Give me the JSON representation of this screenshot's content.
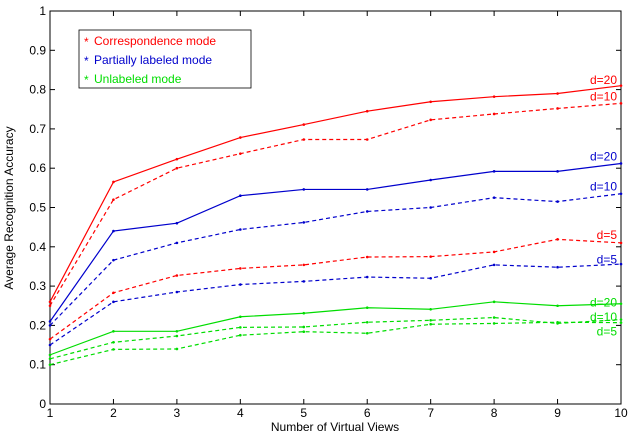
{
  "chart_data": {
    "type": "line",
    "xlabel": "Number of Virtual Views",
    "ylabel": "Average Recognition Accuracy",
    "xlim": [
      1,
      10
    ],
    "ylim": [
      0,
      1
    ],
    "x_ticks": [
      "1",
      "2",
      "3",
      "4",
      "5",
      "6",
      "7",
      "8",
      "9",
      "10"
    ],
    "y_ticks": [
      "0",
      "0.1",
      "0.2",
      "0.3",
      "0.4",
      "0.5",
      "0.6",
      "0.7",
      "0.8",
      "0.9",
      "1"
    ],
    "x": [
      1,
      2,
      3,
      4,
      5,
      6,
      7,
      8,
      9,
      10
    ],
    "grid": false,
    "legend": {
      "placement": "top-left",
      "entries": [
        {
          "label": "Correspondence mode",
          "color": "#ff0000"
        },
        {
          "label": "Partially labeled mode",
          "color": "#0000cc"
        },
        {
          "label": "Unlabeled mode",
          "color": "#00dd00"
        }
      ]
    },
    "series": [
      {
        "name": "d=20",
        "color": "#ff0000",
        "dash": "solid",
        "values": [
          0.26,
          0.565,
          0.623,
          0.678,
          0.711,
          0.745,
          0.769,
          0.782,
          0.79,
          0.81
        ]
      },
      {
        "name": "d=10",
        "color": "#ff0000",
        "dash": "dashed",
        "values": [
          0.25,
          0.52,
          0.6,
          0.637,
          0.673,
          0.673,
          0.723,
          0.738,
          0.752,
          0.765
        ]
      },
      {
        "name": "d=20",
        "color": "#0000cc",
        "dash": "solid",
        "values": [
          0.21,
          0.44,
          0.46,
          0.53,
          0.546,
          0.546,
          0.57,
          0.592,
          0.592,
          0.612
        ]
      },
      {
        "name": "d=10",
        "color": "#0000cc",
        "dash": "dashed",
        "values": [
          0.2,
          0.366,
          0.41,
          0.444,
          0.462,
          0.49,
          0.5,
          0.525,
          0.515,
          0.535
        ]
      },
      {
        "name": "d=5",
        "color": "#ff0000",
        "dash": "dashed",
        "values": [
          0.165,
          0.283,
          0.327,
          0.345,
          0.354,
          0.374,
          0.375,
          0.387,
          0.419,
          0.41
        ]
      },
      {
        "name": "d=5",
        "color": "#0000cc",
        "dash": "dashed",
        "values": [
          0.15,
          0.26,
          0.285,
          0.304,
          0.312,
          0.323,
          0.32,
          0.354,
          0.348,
          0.356
        ]
      },
      {
        "name": "d=20",
        "color": "#00dd00",
        "dash": "solid",
        "values": [
          0.125,
          0.185,
          0.185,
          0.222,
          0.231,
          0.245,
          0.241,
          0.26,
          0.25,
          0.255
        ]
      },
      {
        "name": "d=10",
        "color": "#00dd00",
        "dash": "dashed",
        "values": [
          0.115,
          0.157,
          0.173,
          0.195,
          0.196,
          0.208,
          0.213,
          0.22,
          0.205,
          0.215
        ]
      },
      {
        "name": "d=5",
        "color": "#00dd00",
        "dash": "dashed",
        "values": [
          0.1,
          0.139,
          0.14,
          0.175,
          0.184,
          0.18,
          0.203,
          0.205,
          0.208,
          0.207
        ]
      }
    ],
    "line_labels": [
      {
        "text": "d=20",
        "color": "#ff0000",
        "y": 0.825
      },
      {
        "text": "d=10",
        "color": "#ff0000",
        "y": 0.782
      },
      {
        "text": "d=20",
        "color": "#0000cc",
        "y": 0.63
      },
      {
        "text": "d=10",
        "color": "#0000cc",
        "y": 0.553
      },
      {
        "text": "d=5",
        "color": "#ff0000",
        "y": 0.43
      },
      {
        "text": "d=5",
        "color": "#0000cc",
        "y": 0.368
      },
      {
        "text": "d=20",
        "color": "#00dd00",
        "y": 0.258
      },
      {
        "text": "d=10",
        "color": "#00dd00",
        "y": 0.222
      },
      {
        "text": "d=5",
        "color": "#00dd00",
        "y": 0.185
      }
    ]
  }
}
